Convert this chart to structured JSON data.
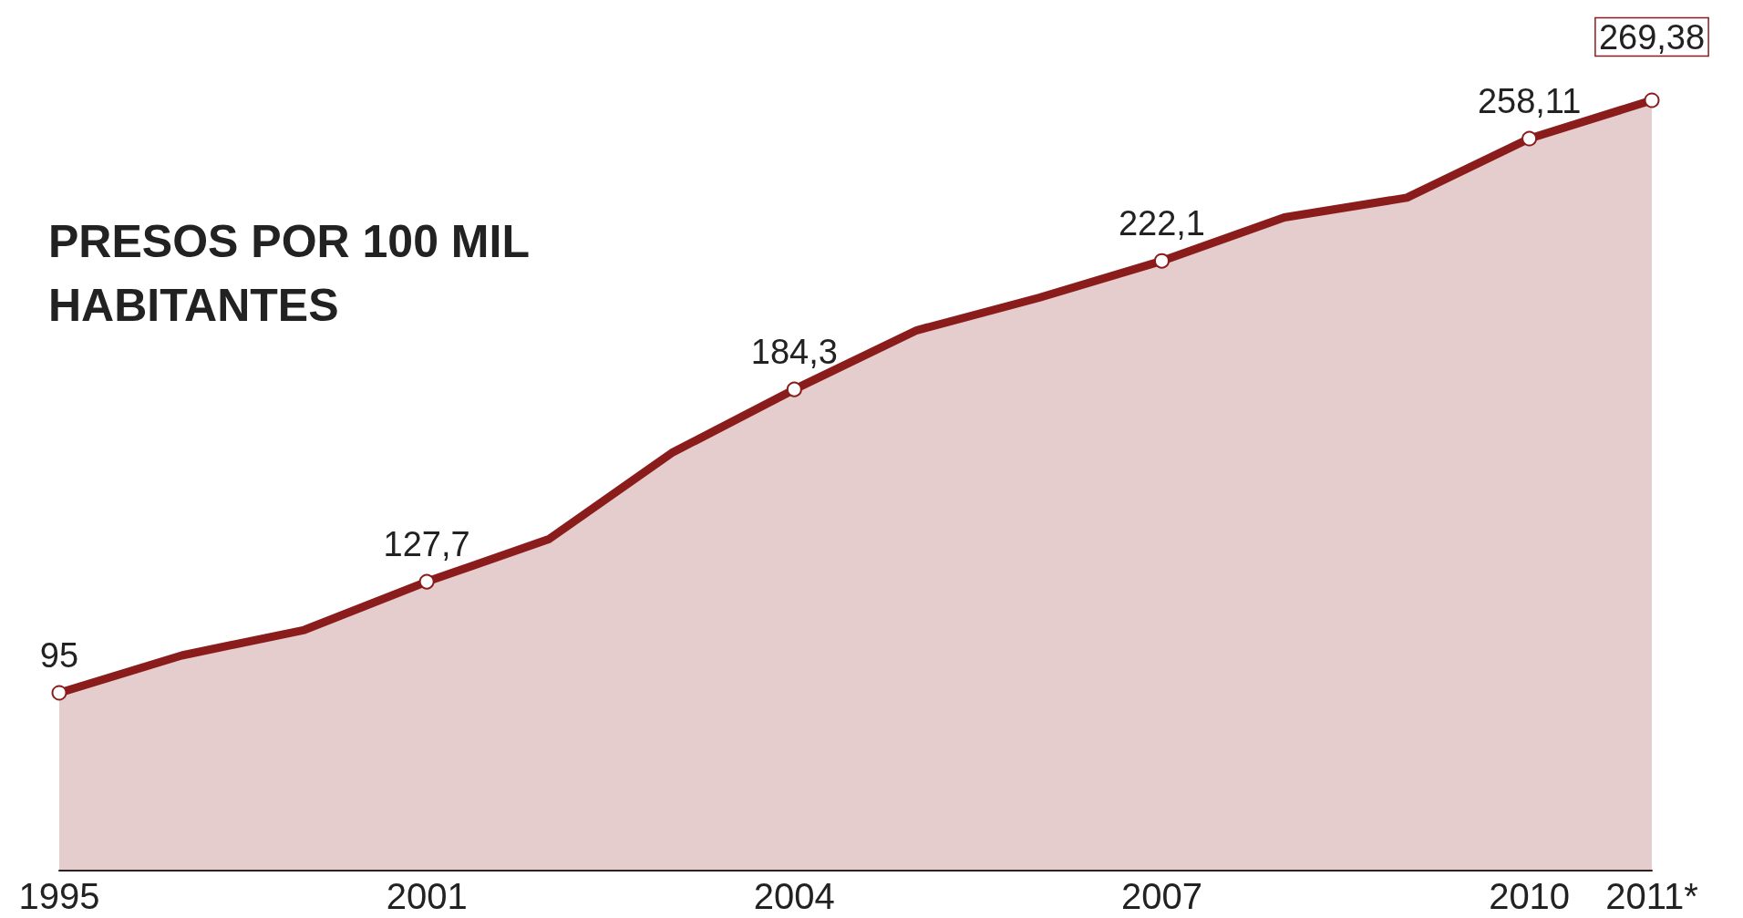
{
  "chart_data": {
    "type": "area",
    "title": "PRESOS POR 100 MIL HABITANTES",
    "categories": [
      "1995",
      null,
      null,
      "2001",
      null,
      null,
      "2004",
      null,
      null,
      "2007",
      null,
      null,
      "2010",
      "2011*"
    ],
    "series": [
      {
        "color": "#8b1c1c",
        "values": [
          95,
          106.0,
          113.5,
          127.7,
          140.3,
          165.6,
          184.3,
          201.7,
          211.3,
          222.1,
          234.9,
          240.7,
          258.11,
          269.38
        ],
        "value_labels": [
          "95",
          null,
          null,
          "127,7",
          null,
          null,
          "184,3",
          null,
          null,
          "222,1",
          null,
          null,
          "258,11",
          "269,38"
        ]
      }
    ],
    "tick_labels": "x",
    "grid": false
  }
}
